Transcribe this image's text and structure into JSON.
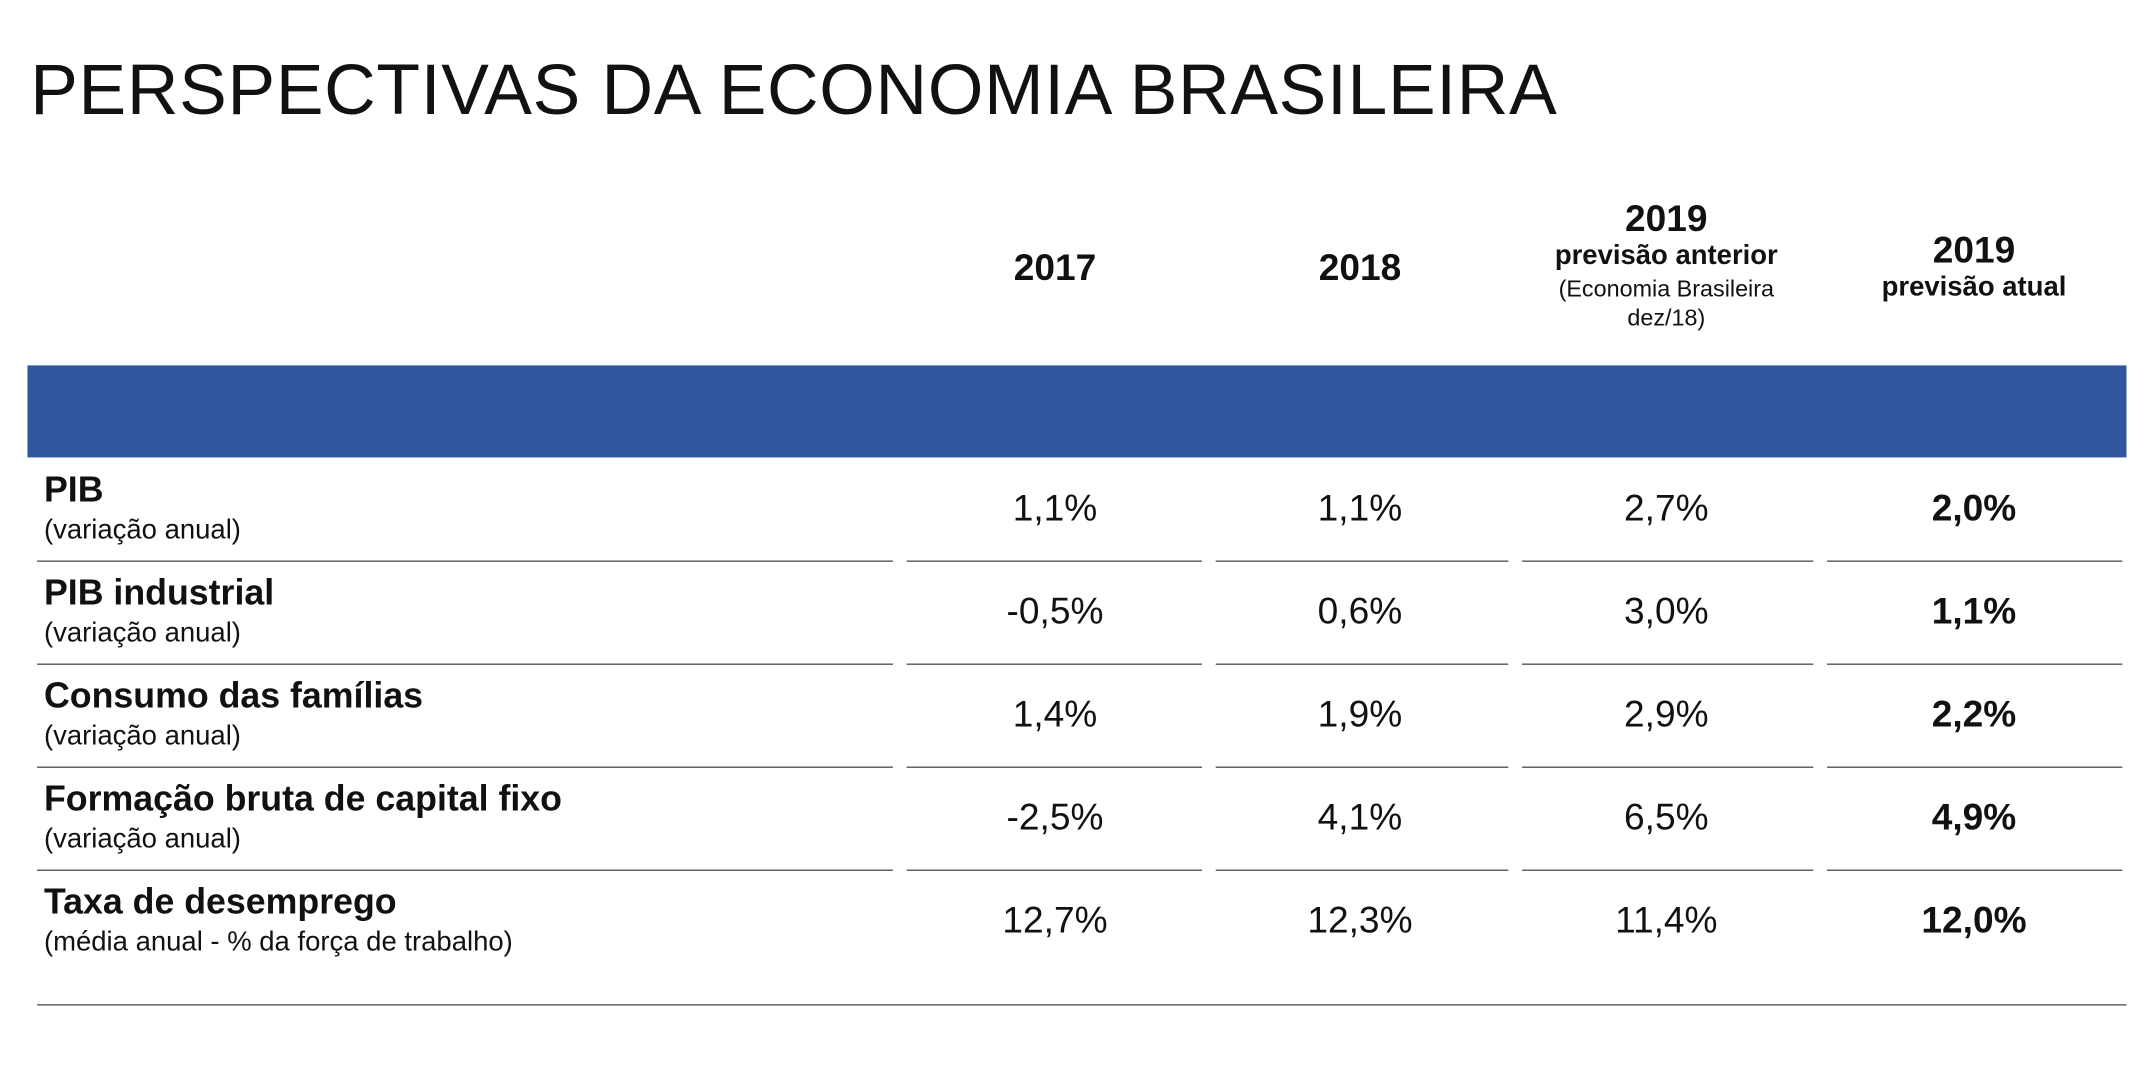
{
  "title": "PERSPECTIVAS DA ECONOMIA BRASILEIRA",
  "table": {
    "columns": [
      {
        "year": "2017"
      },
      {
        "year": "2018"
      },
      {
        "year": "2019",
        "subtitle": "previsão anterior",
        "note": "(Economia Brasileira dez/18)"
      },
      {
        "year": "2019",
        "subtitle": "previsão atual"
      }
    ],
    "rows": [
      {
        "label": "PIB",
        "sublabel": "(variação anual)",
        "values": [
          "1,1%",
          "1,1%",
          "2,7%",
          "2,0%"
        ]
      },
      {
        "label": "PIB industrial",
        "sublabel": "(variação anual)",
        "values": [
          "-0,5%",
          "0,6%",
          "3,0%",
          "1,1%"
        ]
      },
      {
        "label": "Consumo das famílias",
        "sublabel": "(variação anual)",
        "values": [
          "1,4%",
          "1,9%",
          "2,9%",
          "2,2%"
        ]
      },
      {
        "label": "Formação bruta de capital fixo",
        "sublabel": "(variação anual)",
        "values": [
          "-2,5%",
          "4,1%",
          "6,5%",
          "4,9%"
        ]
      },
      {
        "label": "Taxa de desemprego",
        "sublabel": "(média anual - % da força de trabalho)",
        "values": [
          "12,7%",
          "12,3%",
          "11,4%",
          "12,0%"
        ]
      }
    ]
  }
}
